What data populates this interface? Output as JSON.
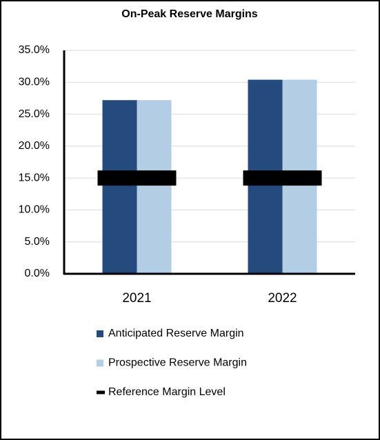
{
  "chart_data": {
    "type": "bar",
    "title": "On-Peak Reserve Margins",
    "categories": [
      "2021",
      "2022"
    ],
    "series": [
      {
        "name": "Anticipated Reserve Margin",
        "color": "#244a7e",
        "values": [
          27.2,
          30.4
        ]
      },
      {
        "name": "Prospective Reserve Margin",
        "color": "#b3cde4",
        "values": [
          27.2,
          30.4
        ]
      },
      {
        "name": "Reference Margin Level",
        "color": "#000000",
        "style": "dash",
        "values": [
          15,
          15
        ]
      }
    ],
    "ylim": [
      0,
      35
    ],
    "yticks": [
      {
        "value": 0,
        "label": "0.0%"
      },
      {
        "value": 5,
        "label": "5.0%"
      },
      {
        "value": 10,
        "label": "10.0%"
      },
      {
        "value": 15,
        "label": "15.0%"
      },
      {
        "value": 20,
        "label": "20.0%"
      },
      {
        "value": 25,
        "label": "25.0%"
      },
      {
        "value": 30,
        "label": "30.0%"
      },
      {
        "value": 35,
        "label": "35.0%"
      }
    ],
    "grid": true,
    "legend": "bottom"
  }
}
